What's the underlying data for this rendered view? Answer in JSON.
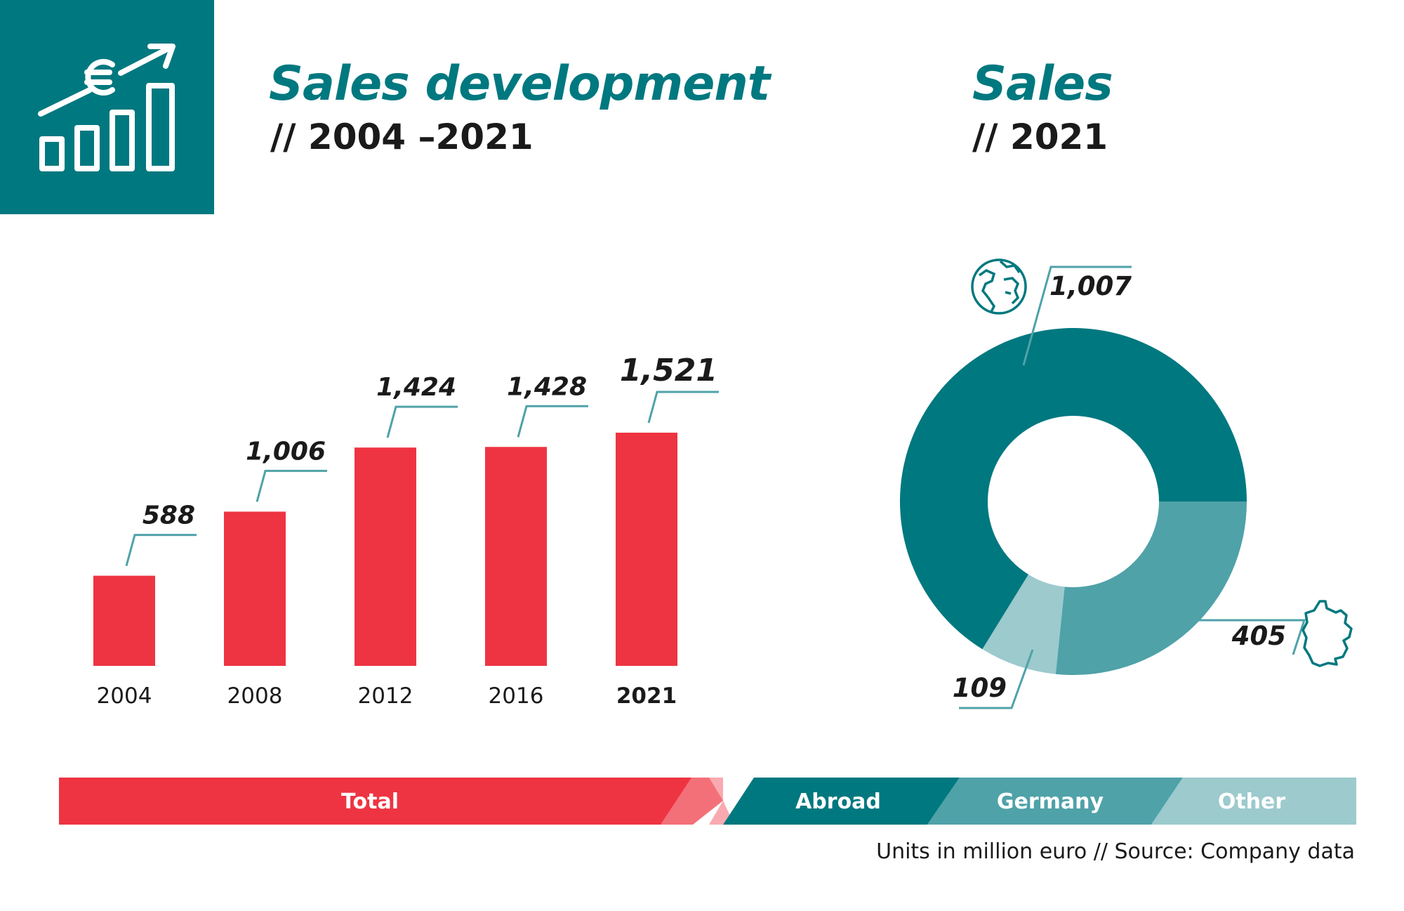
{
  "left": {
    "title": "Sales development",
    "subtitle": "//  2004 –2021"
  },
  "right": {
    "title": "Sales",
    "subtitle": "//  2021"
  },
  "colors": {
    "teal": "#00787f",
    "teal_mid": "#4fa2a8",
    "teal_light": "#9ccacd",
    "red": "#ee3442"
  },
  "legend": {
    "total": "Total",
    "abroad": "Abroad",
    "germany": "Germany",
    "other": "Other"
  },
  "footnote": "Units in million euro   //  Source:  Company data",
  "icons": [
    "sales-growth-euro-icon",
    "globe-icon",
    "germany-map-icon"
  ],
  "chart_data": [
    {
      "type": "bar",
      "categories": [
        "2004",
        "2008",
        "2012",
        "2016",
        "2021"
      ],
      "values": [
        588,
        1006,
        1424,
        1428,
        1521
      ],
      "value_labels": [
        "588",
        "1,006",
        "1,424",
        "1,428",
        "1,521"
      ],
      "highlight_category": "2021",
      "color": "#ee3442",
      "grid": false
    },
    {
      "type": "pie",
      "donut": true,
      "labels": [
        "Abroad",
        "Germany",
        "Other"
      ],
      "values": [
        1007,
        405,
        109
      ],
      "value_labels": [
        "1,007",
        "405",
        "109"
      ],
      "colors": [
        "#00787f",
        "#4fa2a8",
        "#9ccacd"
      ]
    }
  ]
}
